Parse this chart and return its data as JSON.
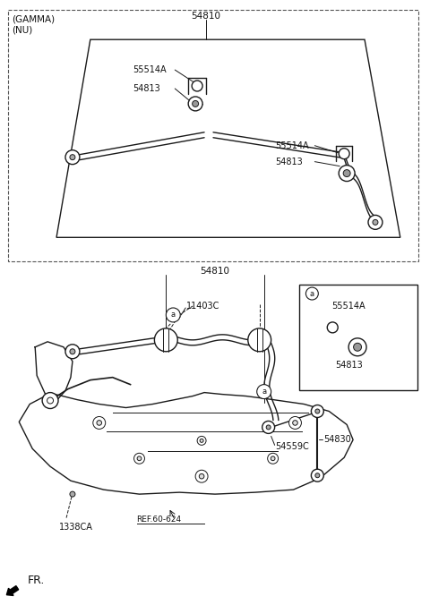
{
  "bg_color": "#ffffff",
  "line_color": "#1a1a1a",
  "fig_width": 4.8,
  "fig_height": 6.76,
  "dpi": 100,
  "labels": {
    "gamma_nu": "(GAMMA)\n(NU)",
    "54810_top": "54810",
    "55514A_left": "55514A",
    "54813_left": "54813",
    "55514A_right": "55514A",
    "54813_right": "54813",
    "54810_mid": "54810",
    "11403C": "11403C",
    "a1": "a",
    "a2": "a",
    "a3": "a",
    "55514A_box": "55514A",
    "54813_box": "54813",
    "54830": "54830",
    "54559C": "54559C",
    "1338CA": "1338CA",
    "ref": "REF.60-624",
    "fr": "FR."
  }
}
